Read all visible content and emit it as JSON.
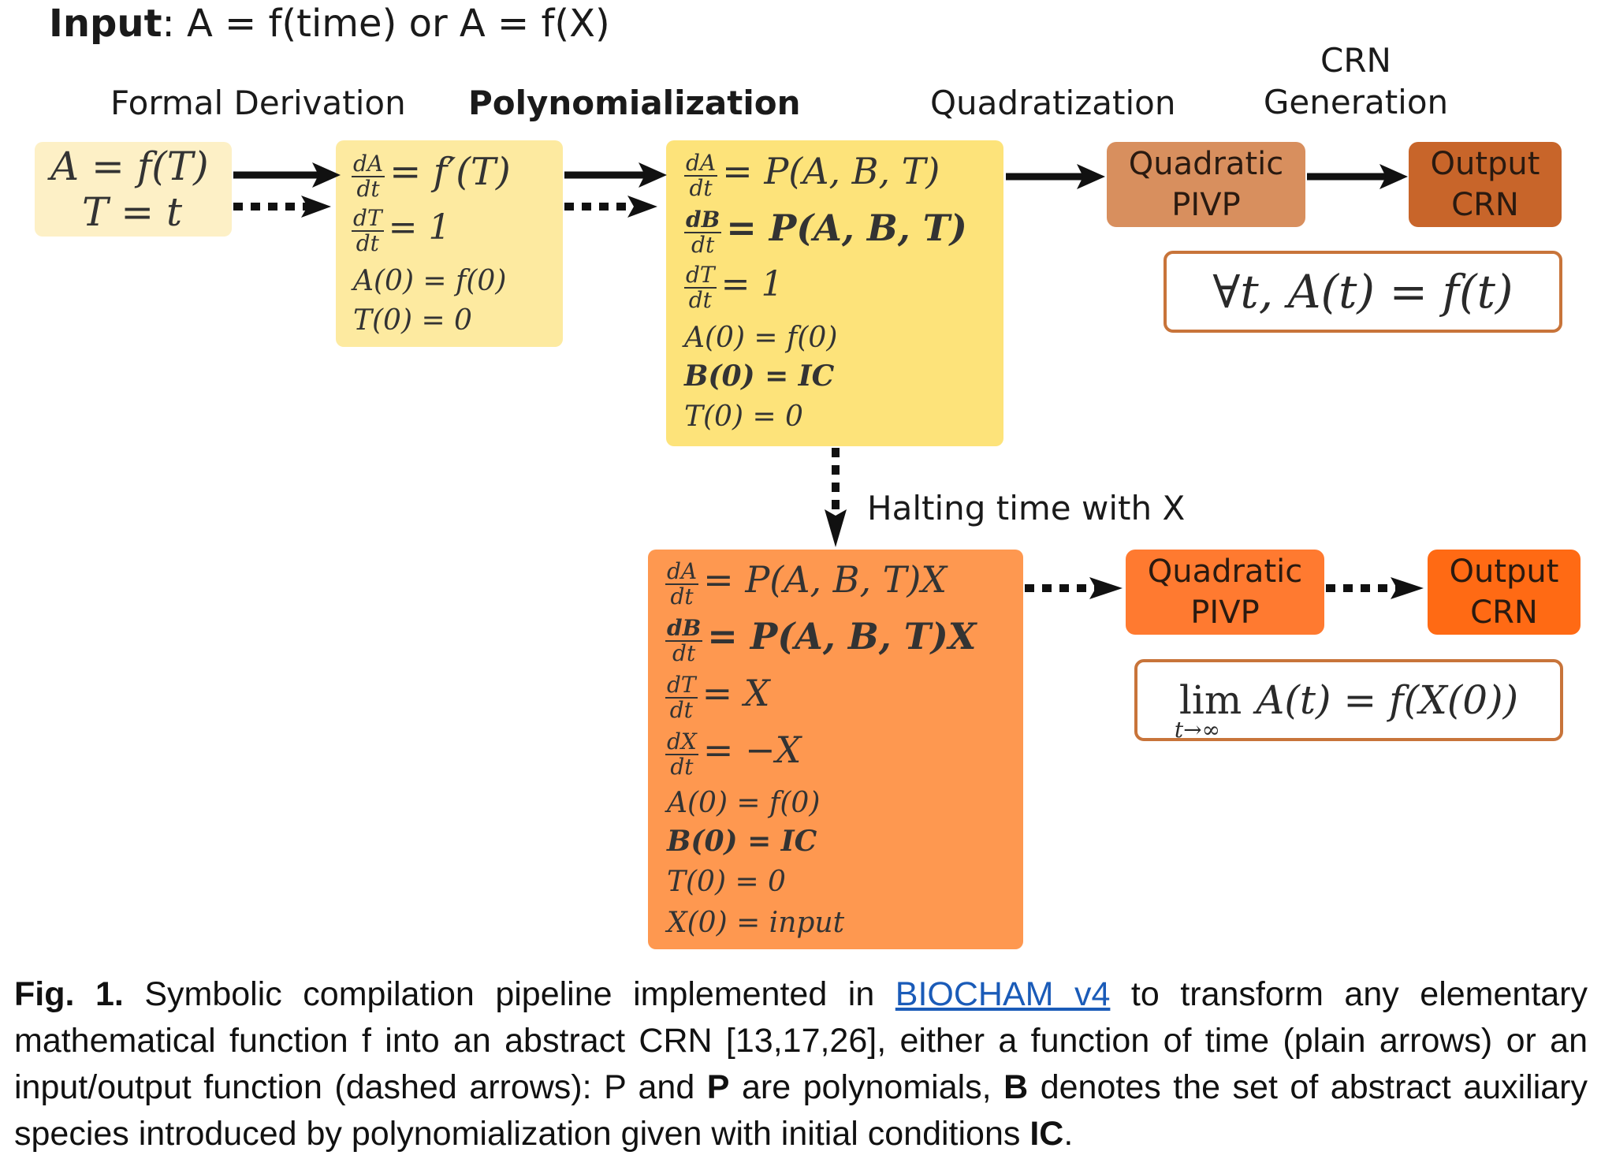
{
  "header": {
    "input_label": "Input",
    "input_rest": ": A = f(time) or A = f(X)"
  },
  "stages": {
    "formal_derivation": "Formal Derivation",
    "polynomialization": "Polynomialization",
    "quadratization": "Quadratization",
    "crn_line1": "CRN",
    "crn_line2": "Generation"
  },
  "box1": {
    "line1": "A = f(T)",
    "line2": "T = t"
  },
  "box2": {
    "eq1_rhs": "= f′(T)",
    "eq2_rhs": "= 1",
    "init1": "A(0) = f(0)",
    "init2": "T(0) = 0"
  },
  "box3": {
    "eq1_rhs": "= P(A, B, T)",
    "eq2_rhs": "= P(A, B, T)",
    "eq3_rhs": "= 1",
    "init1": "A(0) = f(0)",
    "init2": "B(0) = IC",
    "init3": "T(0) = 0"
  },
  "box4": {
    "eq1_rhs": "= P(A, B, T)X",
    "eq2_rhs": "= P(A, B, T)X",
    "eq3_rhs": "= X",
    "eq4_rhs": "= −X",
    "init1": "A(0) = f(0)",
    "init2": "B(0) = IC",
    "init3": "T(0) = 0",
    "init4": "X(0) = input"
  },
  "fractions": {
    "dA": "dA",
    "dB": "dB",
    "dT": "dT",
    "dX": "dX",
    "dt": "dt"
  },
  "top_pipeline": {
    "quadratic_line1": "Quadratic",
    "quadratic_line2": "PIVP",
    "output_line1": "Output",
    "output_line2": "CRN",
    "result": "∀t, A(t) = f(t)"
  },
  "bottom_pipeline": {
    "quadratic_line1": "Quadratic",
    "quadratic_line2": "PIVP",
    "output_line1": "Output",
    "output_line2": "CRN",
    "result_lim": "lim",
    "result_sub": "t→∞",
    "result_rest": "A(t) = f(X(0))"
  },
  "halting_label": "Halting time with X",
  "caption": {
    "fig_label": "Fig. 1.",
    "part1": " Symbolic compilation pipeline implemented in ",
    "link": "BIOCHAM v4",
    "part2": " to transform any elementary mathematical function f into an abstract CRN [13,17,26], either a function of time (plain arrows) or an input/output function (dashed arrows): P and ",
    "bold_P": "P",
    "part3": " are polynomials, ",
    "bold_B": "B",
    "part4": " denotes the set of abstract auxiliary species introduced by polynomialization given with initial conditions ",
    "bold_IC": "IC",
    "part5": "."
  },
  "colors": {
    "box1": "#fdf0c6",
    "box2": "#fdeaa0",
    "box3": "#fde37a",
    "box4": "#fe9850",
    "quad_top": "#d88f5e",
    "out_top": "#c8652a",
    "quad_bot": "#ff7a30",
    "out_bot": "#ff6a14",
    "result_border": "#c8743a",
    "link": "#1a5bb8"
  }
}
